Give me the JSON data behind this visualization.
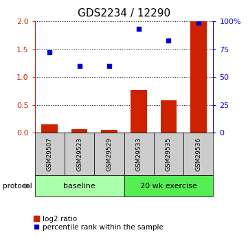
{
  "title": "GDS2234 / 12290",
  "samples": [
    "GSM29507",
    "GSM29523",
    "GSM29529",
    "GSM29533",
    "GSM29535",
    "GSM29536"
  ],
  "log2_ratio": [
    0.15,
    0.07,
    0.05,
    0.77,
    0.58,
    2.0
  ],
  "percentile_rank": [
    72,
    60,
    60,
    93,
    83,
    99
  ],
  "bar_color": "#cc2200",
  "dot_color": "#0000cc",
  "ylim_left": [
    0,
    2
  ],
  "ylim_right": [
    0,
    100
  ],
  "yticks_left": [
    0,
    0.5,
    1.0,
    1.5,
    2.0
  ],
  "yticks_right": [
    0,
    25,
    50,
    75,
    100
  ],
  "ytick_labels_right": [
    "0",
    "25",
    "50",
    "75",
    "100%"
  ],
  "protocol_groups": [
    {
      "label": "baseline",
      "indices": [
        0,
        1,
        2
      ],
      "color": "#aaffaa"
    },
    {
      "label": "20 wk exercise",
      "indices": [
        3,
        4,
        5
      ],
      "color": "#55ee55"
    }
  ],
  "protocol_label": "protocol",
  "legend_bar_label": "log2 ratio",
  "legend_dot_label": "percentile rank within the sample",
  "sample_box_color": "#cccccc",
  "background_color": "#ffffff",
  "grid_color": "#000000",
  "title_fontsize": 11,
  "tick_fontsize": 8,
  "sample_fontsize": 6.5,
  "proto_fontsize": 8,
  "legend_fontsize": 7.5
}
